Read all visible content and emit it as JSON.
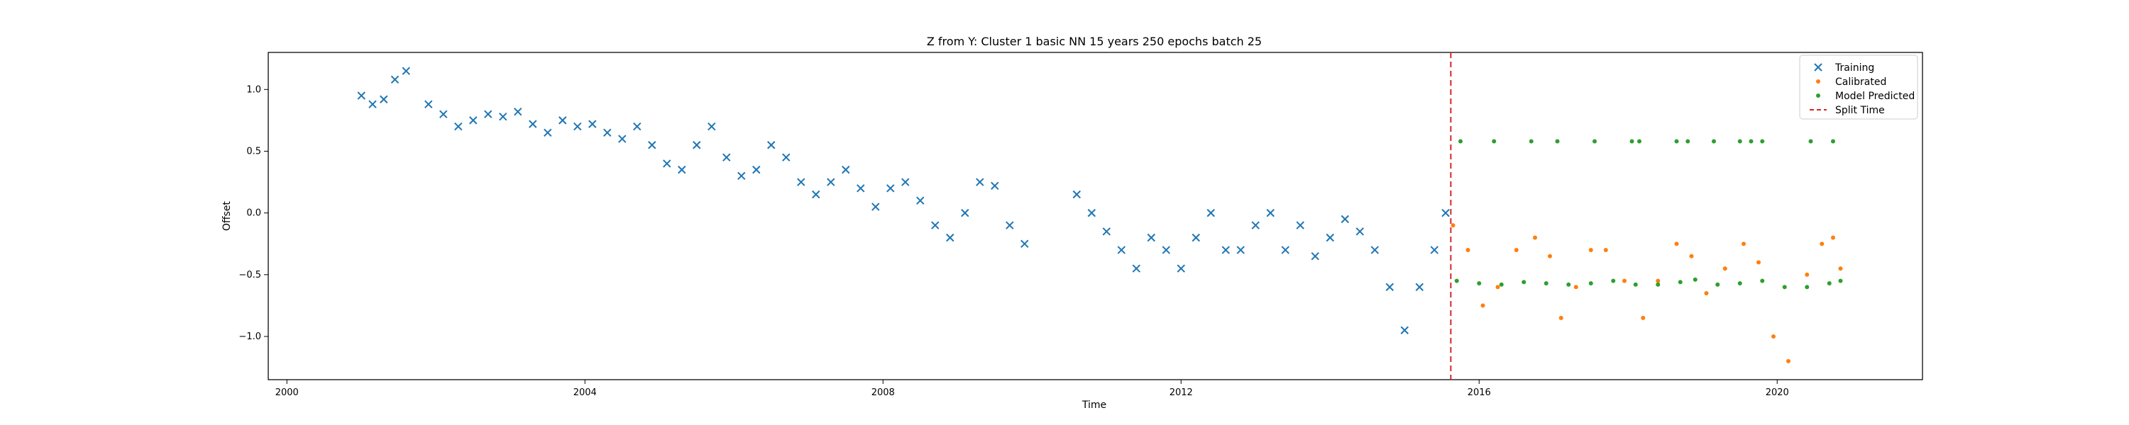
{
  "chart_data": {
    "type": "scatter",
    "title": "Z from Y: Cluster 1 basic NN 15 years 250 epochs batch 25",
    "xlabel": "Time",
    "ylabel": "Offset",
    "xlim": [
      1999.75,
      2021.95
    ],
    "ylim": [
      -1.35,
      1.3
    ],
    "x_ticks": [
      2000,
      2004,
      2008,
      2012,
      2016,
      2020
    ],
    "y_ticks": [
      1.0,
      0.5,
      0.0,
      -0.5,
      -1.0
    ],
    "x_tick_labels": [
      "2000",
      "2004",
      "2008",
      "2012",
      "2016",
      "2020"
    ],
    "y_tick_labels": [
      "1.0",
      "0.5",
      "0.0",
      "−0.5",
      "−1.0"
    ],
    "grid": false,
    "legend_position": "top-right",
    "split_time": 2015.62,
    "series": [
      {
        "name": "Training",
        "marker": "x",
        "color": "#1f77b4",
        "x": [
          2001.0,
          2001.15,
          2001.3,
          2001.45,
          2001.6,
          2001.9,
          2002.1,
          2002.3,
          2002.5,
          2002.7,
          2002.9,
          2003.1,
          2003.3,
          2003.5,
          2003.7,
          2003.9,
          2004.1,
          2004.3,
          2004.5,
          2004.7,
          2004.9,
          2005.1,
          2005.3,
          2005.5,
          2005.7,
          2005.9,
          2006.1,
          2006.3,
          2006.5,
          2006.7,
          2006.9,
          2007.1,
          2007.3,
          2007.5,
          2007.7,
          2007.9,
          2008.1,
          2008.3,
          2008.5,
          2008.7,
          2008.9,
          2009.1,
          2009.3,
          2009.5,
          2009.7,
          2009.9,
          2010.6,
          2010.8,
          2011.0,
          2011.2,
          2011.4,
          2011.6,
          2011.8,
          2012.0,
          2012.2,
          2012.4,
          2012.6,
          2012.8,
          2013.0,
          2013.2,
          2013.4,
          2013.6,
          2013.8,
          2014.0,
          2014.2,
          2014.4,
          2014.6,
          2014.8,
          2015.0,
          2015.2,
          2015.4,
          2015.55
        ],
        "y": [
          0.95,
          0.88,
          0.92,
          1.08,
          1.15,
          0.88,
          0.8,
          0.7,
          0.75,
          0.8,
          0.78,
          0.82,
          0.72,
          0.65,
          0.75,
          0.7,
          0.72,
          0.65,
          0.6,
          0.7,
          0.55,
          0.4,
          0.35,
          0.55,
          0.7,
          0.45,
          0.3,
          0.35,
          0.55,
          0.45,
          0.25,
          0.15,
          0.25,
          0.35,
          0.2,
          0.05,
          0.2,
          0.25,
          0.1,
          -0.1,
          -0.2,
          0.0,
          0.25,
          0.22,
          -0.1,
          -0.25,
          0.15,
          0.0,
          -0.15,
          -0.3,
          -0.45,
          -0.2,
          -0.3,
          -0.45,
          -0.2,
          0.0,
          -0.3,
          -0.3,
          -0.1,
          0.0,
          -0.3,
          -0.1,
          -0.35,
          -0.2,
          -0.05,
          -0.15,
          -0.3,
          -0.6,
          -0.95,
          -0.6,
          -0.3,
          0.0
        ]
      },
      {
        "name": "Calibrated",
        "marker": "dot",
        "color": "#ff7f0e",
        "x": [
          2015.65,
          2015.85,
          2016.05,
          2016.25,
          2016.5,
          2016.75,
          2016.95,
          2017.1,
          2017.3,
          2017.5,
          2017.7,
          2017.95,
          2018.2,
          2018.4,
          2018.65,
          2018.85,
          2019.05,
          2019.3,
          2019.55,
          2019.75,
          2019.95,
          2020.15,
          2020.4,
          2020.6,
          2020.75,
          2020.85
        ],
        "y": [
          -0.1,
          -0.3,
          -0.75,
          -0.6,
          -0.3,
          -0.2,
          -0.35,
          -0.85,
          -0.6,
          -0.3,
          -0.3,
          -0.55,
          -0.85,
          -0.55,
          -0.25,
          -0.35,
          -0.65,
          -0.45,
          -0.25,
          -0.4,
          -1.0,
          -1.2,
          -0.5,
          -0.25,
          -0.2,
          -0.45
        ]
      },
      {
        "name": "Model Predicted",
        "marker": "dot",
        "color": "#2ca02c",
        "x": [
          2015.7,
          2016.0,
          2016.3,
          2016.6,
          2016.9,
          2017.2,
          2017.5,
          2017.8,
          2018.1,
          2018.4,
          2018.7,
          2018.9,
          2019.2,
          2019.5,
          2019.8,
          2020.1,
          2020.4,
          2020.7,
          2020.85,
          2015.75,
          2016.2,
          2016.7,
          2017.05,
          2017.55,
          2018.05,
          2018.15,
          2018.65,
          2018.8,
          2019.15,
          2019.5,
          2019.65,
          2019.8,
          2020.45,
          2020.75
        ],
        "y": [
          -0.55,
          -0.57,
          -0.58,
          -0.56,
          -0.57,
          -0.58,
          -0.57,
          -0.55,
          -0.58,
          -0.58,
          -0.56,
          -0.54,
          -0.58,
          -0.57,
          -0.55,
          -0.6,
          -0.6,
          -0.57,
          -0.55,
          0.58,
          0.58,
          0.58,
          0.58,
          0.58,
          0.58,
          0.58,
          0.58,
          0.58,
          0.58,
          0.58,
          0.58,
          0.58,
          0.58,
          0.58
        ]
      },
      {
        "name": "Split Time",
        "marker": "dashed-line",
        "color": "#d62728"
      }
    ]
  }
}
